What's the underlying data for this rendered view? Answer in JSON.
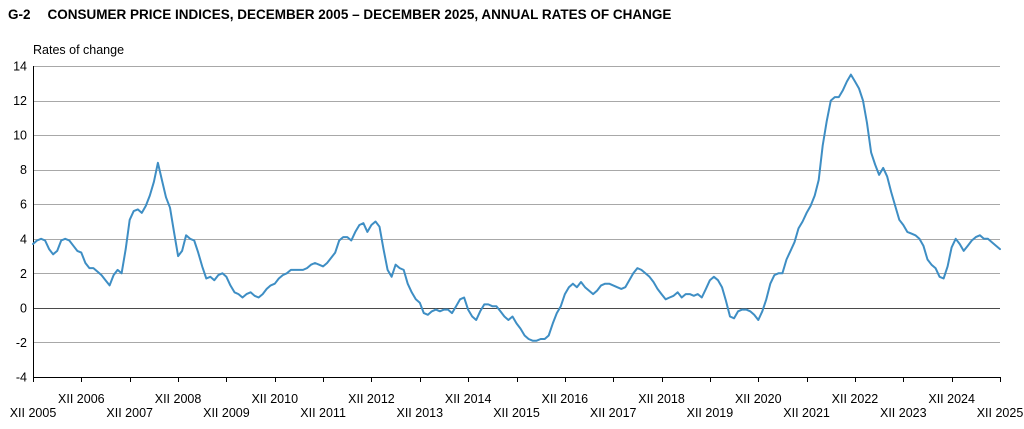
{
  "header": {
    "code": "G-2",
    "title": "CONSUMER PRICE INDICES, DECEMBER 2005 – DECEMBER 2025, ANNUAL RATES OF CHANGE"
  },
  "chart_data": {
    "type": "line",
    "title": "G-2 CONSUMER PRICE INDICES, DECEMBER 2005 – DECEMBER 2025, ANNUAL RATES OF CHANGE",
    "ylabel": "Rates of change",
    "xlabel": "",
    "ylim": [
      -4,
      14
    ],
    "y_ticks": [
      14,
      12,
      10,
      8,
      6,
      4,
      2,
      0,
      -2,
      -4
    ],
    "grid": "horizontal",
    "zero_line": true,
    "legend": "none",
    "frequency": "monthly",
    "x_start": "XII 2005",
    "x_end": "XII 2025",
    "x_ticks": [
      {
        "label": "XII 2005",
        "row": "lower"
      },
      {
        "label": "XII 2006",
        "row": "upper"
      },
      {
        "label": "XII 2007",
        "row": "lower"
      },
      {
        "label": "XII 2008",
        "row": "upper"
      },
      {
        "label": "XII 2009",
        "row": "lower"
      },
      {
        "label": "XII 2010",
        "row": "upper"
      },
      {
        "label": "XII 2011",
        "row": "lower"
      },
      {
        "label": "XII 2012",
        "row": "upper"
      },
      {
        "label": "XII 2013",
        "row": "lower"
      },
      {
        "label": "XII 2014",
        "row": "upper"
      },
      {
        "label": "XII 2015",
        "row": "lower"
      },
      {
        "label": "XII 2016",
        "row": "upper"
      },
      {
        "label": "XII 2017",
        "row": "lower"
      },
      {
        "label": "XII 2018",
        "row": "upper"
      },
      {
        "label": "XII 2019",
        "row": "lower"
      },
      {
        "label": "XII 2020",
        "row": "upper"
      },
      {
        "label": "XII 2021",
        "row": "lower"
      },
      {
        "label": "XII 2022",
        "row": "upper"
      },
      {
        "label": "XII 2023",
        "row": "lower"
      },
      {
        "label": "XII 2024",
        "row": "upper"
      },
      {
        "label": "XII 2025",
        "row": "lower"
      }
    ],
    "colors": {
      "line": "#3e8ec4",
      "gridline": "#a8a8a8",
      "zero_line": "#4a4a4a",
      "axis": "#000000",
      "text": "#000000"
    },
    "series": [
      {
        "name": "Consumer price index, annual rate of change (%)",
        "color": "#3e8ec4",
        "start": "XII 2005",
        "values": [
          3.7,
          3.9,
          4.0,
          3.9,
          3.4,
          3.1,
          3.3,
          3.9,
          4.0,
          3.9,
          3.6,
          3.3,
          3.2,
          2.6,
          2.3,
          2.3,
          2.1,
          1.9,
          1.6,
          1.3,
          1.9,
          2.2,
          2.0,
          3.4,
          5.1,
          5.6,
          5.7,
          5.5,
          5.9,
          6.5,
          7.3,
          8.4,
          7.4,
          6.4,
          5.8,
          4.4,
          3.0,
          3.3,
          4.2,
          4.0,
          3.9,
          3.2,
          2.4,
          1.7,
          1.8,
          1.6,
          1.9,
          2.0,
          1.8,
          1.3,
          0.9,
          0.8,
          0.6,
          0.8,
          0.9,
          0.7,
          0.6,
          0.8,
          1.1,
          1.3,
          1.4,
          1.7,
          1.9,
          2.0,
          2.2,
          2.2,
          2.2,
          2.2,
          2.3,
          2.5,
          2.6,
          2.5,
          2.4,
          2.6,
          2.9,
          3.2,
          3.9,
          4.1,
          4.1,
          3.9,
          4.4,
          4.8,
          4.9,
          4.4,
          4.8,
          5.0,
          4.7,
          3.4,
          2.2,
          1.8,
          2.5,
          2.3,
          2.2,
          1.4,
          0.9,
          0.5,
          0.3,
          -0.3,
          -0.4,
          -0.2,
          -0.1,
          -0.2,
          -0.1,
          -0.1,
          -0.3,
          0.1,
          0.5,
          0.6,
          -0.1,
          -0.5,
          -0.7,
          -0.2,
          0.2,
          0.2,
          0.1,
          0.1,
          -0.2,
          -0.5,
          -0.7,
          -0.5,
          -0.9,
          -1.2,
          -1.6,
          -1.8,
          -1.9,
          -1.9,
          -1.8,
          -1.8,
          -1.6,
          -0.9,
          -0.3,
          0.1,
          0.8,
          1.2,
          1.4,
          1.2,
          1.5,
          1.2,
          1.0,
          0.8,
          1.0,
          1.3,
          1.4,
          1.4,
          1.3,
          1.2,
          1.1,
          1.2,
          1.6,
          2.0,
          2.3,
          2.2,
          2.0,
          1.8,
          1.5,
          1.1,
          0.8,
          0.5,
          0.6,
          0.7,
          0.9,
          0.6,
          0.8,
          0.8,
          0.7,
          0.8,
          0.6,
          1.1,
          1.6,
          1.8,
          1.6,
          1.2,
          0.4,
          -0.5,
          -0.6,
          -0.2,
          -0.1,
          -0.1,
          -0.2,
          -0.4,
          -0.7,
          -0.2,
          0.5,
          1.4,
          1.9,
          2.0,
          2.0,
          2.8,
          3.3,
          3.8,
          4.6,
          5.0,
          5.5,
          5.9,
          6.5,
          7.4,
          9.4,
          10.8,
          12.0,
          12.2,
          12.2,
          12.6,
          13.1,
          13.5,
          13.1,
          12.7,
          12.0,
          10.7,
          9.0,
          8.3,
          7.7,
          8.1,
          7.6,
          6.7,
          5.9,
          5.1,
          4.8,
          4.4,
          4.3,
          4.2,
          4.0,
          3.6,
          2.8,
          2.5,
          2.3,
          1.8,
          1.7,
          2.4,
          3.5,
          4.0,
          3.7,
          3.3,
          3.6,
          3.9,
          4.1,
          4.2,
          4.0,
          4.0,
          3.8,
          3.6,
          3.4
        ]
      }
    ]
  }
}
